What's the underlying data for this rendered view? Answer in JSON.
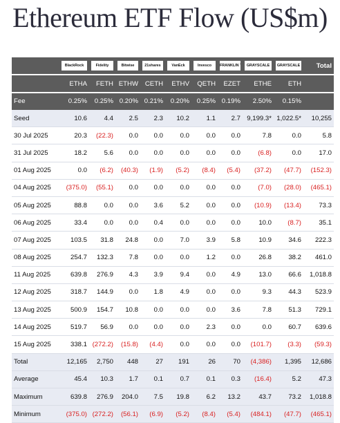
{
  "title": "Ethereum ETF Flow (US$m)",
  "issuers": [
    "BlackRock",
    "Fidelity",
    "Bitwise",
    "21shares",
    "VanEck",
    "Invesco",
    "FRANKLIN TEMPLETON",
    "GRAYSCALE",
    "GRAYSCALE"
  ],
  "total_header": "Total",
  "tickers": [
    "ETHA",
    "FETH",
    "ETHW",
    "CETH",
    "ETHV",
    "QETH",
    "EZET",
    "ETHE",
    "ETH"
  ],
  "fee": {
    "label": "Fee",
    "values": [
      "0.25%",
      "0.25%",
      "0.20%",
      "0.21%",
      "0.20%",
      "0.25%",
      "0.19%",
      "2.50%",
      "0.15%"
    ]
  },
  "rows": [
    {
      "label": "Seed",
      "values": [
        "10.6",
        "4.4",
        "2.5",
        "2.3",
        "10.2",
        "1.1",
        "2.7",
        "9,199.3*",
        "1,022.5*",
        "10,255"
      ],
      "neg": [
        false,
        false,
        false,
        false,
        false,
        false,
        false,
        false,
        false,
        false
      ],
      "shade": true
    },
    {
      "label": "30 Jul 2025",
      "values": [
        "20.3",
        "(22.3)",
        "0.0",
        "0.0",
        "0.0",
        "0.0",
        "0.0",
        "7.8",
        "0.0",
        "5.8"
      ],
      "neg": [
        false,
        true,
        false,
        false,
        false,
        false,
        false,
        false,
        false,
        false
      ],
      "shade": false
    },
    {
      "label": "31 Jul 2025",
      "values": [
        "18.2",
        "5.6",
        "0.0",
        "0.0",
        "0.0",
        "0.0",
        "0.0",
        "(6.8)",
        "0.0",
        "17.0"
      ],
      "neg": [
        false,
        false,
        false,
        false,
        false,
        false,
        false,
        true,
        false,
        false
      ],
      "shade": false
    },
    {
      "label": "01 Aug 2025",
      "values": [
        "0.0",
        "(6.2)",
        "(40.3)",
        "(1.9)",
        "(5.2)",
        "(8.4)",
        "(5.4)",
        "(37.2)",
        "(47.7)",
        "(152.3)"
      ],
      "neg": [
        false,
        true,
        true,
        true,
        true,
        true,
        true,
        true,
        true,
        true
      ],
      "shade": false
    },
    {
      "label": "04 Aug 2025",
      "values": [
        "(375.0)",
        "(55.1)",
        "0.0",
        "0.0",
        "0.0",
        "0.0",
        "0.0",
        "(7.0)",
        "(28.0)",
        "(465.1)"
      ],
      "neg": [
        true,
        true,
        false,
        false,
        false,
        false,
        false,
        true,
        true,
        true
      ],
      "shade": false
    },
    {
      "label": "05 Aug 2025",
      "values": [
        "88.8",
        "0.0",
        "0.0",
        "3.6",
        "5.2",
        "0.0",
        "0.0",
        "(10.9)",
        "(13.4)",
        "73.3"
      ],
      "neg": [
        false,
        false,
        false,
        false,
        false,
        false,
        false,
        true,
        true,
        false
      ],
      "shade": false
    },
    {
      "label": "06 Aug 2025",
      "values": [
        "33.4",
        "0.0",
        "0.0",
        "0.4",
        "0.0",
        "0.0",
        "0.0",
        "10.0",
        "(8.7)",
        "35.1"
      ],
      "neg": [
        false,
        false,
        false,
        false,
        false,
        false,
        false,
        false,
        true,
        false
      ],
      "shade": false
    },
    {
      "label": "07 Aug 2025",
      "values": [
        "103.5",
        "31.8",
        "24.8",
        "0.0",
        "7.0",
        "3.9",
        "5.8",
        "10.9",
        "34.6",
        "222.3"
      ],
      "neg": [
        false,
        false,
        false,
        false,
        false,
        false,
        false,
        false,
        false,
        false
      ],
      "shade": false
    },
    {
      "label": "08 Aug 2025",
      "values": [
        "254.7",
        "132.3",
        "7.8",
        "0.0",
        "0.0",
        "1.2",
        "0.0",
        "26.8",
        "38.2",
        "461.0"
      ],
      "neg": [
        false,
        false,
        false,
        false,
        false,
        false,
        false,
        false,
        false,
        false
      ],
      "shade": false
    },
    {
      "label": "11 Aug 2025",
      "values": [
        "639.8",
        "276.9",
        "4.3",
        "3.9",
        "9.4",
        "0.0",
        "4.9",
        "13.0",
        "66.6",
        "1,018.8"
      ],
      "neg": [
        false,
        false,
        false,
        false,
        false,
        false,
        false,
        false,
        false,
        false
      ],
      "shade": false
    },
    {
      "label": "12 Aug 2025",
      "values": [
        "318.7",
        "144.9",
        "0.0",
        "1.8",
        "4.9",
        "0.0",
        "0.0",
        "9.3",
        "44.3",
        "523.9"
      ],
      "neg": [
        false,
        false,
        false,
        false,
        false,
        false,
        false,
        false,
        false,
        false
      ],
      "shade": false
    },
    {
      "label": "13 Aug 2025",
      "values": [
        "500.9",
        "154.7",
        "10.8",
        "0.0",
        "0.0",
        "0.0",
        "3.6",
        "7.8",
        "51.3",
        "729.1"
      ],
      "neg": [
        false,
        false,
        false,
        false,
        false,
        false,
        false,
        false,
        false,
        false
      ],
      "shade": false
    },
    {
      "label": "14 Aug 2025",
      "values": [
        "519.7",
        "56.9",
        "0.0",
        "0.0",
        "0.0",
        "2.3",
        "0.0",
        "0.0",
        "60.7",
        "639.6"
      ],
      "neg": [
        false,
        false,
        false,
        false,
        false,
        false,
        false,
        false,
        false,
        false
      ],
      "shade": false
    },
    {
      "label": "15 Aug 2025",
      "values": [
        "338.1",
        "(272.2)",
        "(15.8)",
        "(4.4)",
        "0.0",
        "0.0",
        "0.0",
        "(101.7)",
        "(3.3)",
        "(59.3)"
      ],
      "neg": [
        false,
        true,
        true,
        true,
        false,
        false,
        false,
        true,
        true,
        true
      ],
      "shade": false
    },
    {
      "label": "Total",
      "values": [
        "12,165",
        "2,750",
        "448",
        "27",
        "191",
        "26",
        "70",
        "(4,386)",
        "1,395",
        "12,686"
      ],
      "neg": [
        false,
        false,
        false,
        false,
        false,
        false,
        false,
        true,
        false,
        false
      ],
      "shade": true
    },
    {
      "label": "Average",
      "values": [
        "45.4",
        "10.3",
        "1.7",
        "0.1",
        "0.7",
        "0.1",
        "0.3",
        "(16.4)",
        "5.2",
        "47.3"
      ],
      "neg": [
        false,
        false,
        false,
        false,
        false,
        false,
        false,
        true,
        false,
        false
      ],
      "shade": true
    },
    {
      "label": "Maximum",
      "values": [
        "639.8",
        "276.9",
        "204.0",
        "7.5",
        "19.8",
        "6.2",
        "13.2",
        "43.7",
        "73.2",
        "1,018.8"
      ],
      "neg": [
        false,
        false,
        false,
        false,
        false,
        false,
        false,
        false,
        false,
        false
      ],
      "shade": true
    },
    {
      "label": "Minimum",
      "values": [
        "(375.0)",
        "(272.2)",
        "(56.1)",
        "(6.9)",
        "(5.2)",
        "(8.4)",
        "(5.4)",
        "(484.1)",
        "(47.7)",
        "(465.1)"
      ],
      "neg": [
        true,
        true,
        true,
        true,
        true,
        true,
        true,
        true,
        true,
        true
      ],
      "shade": true
    }
  ]
}
